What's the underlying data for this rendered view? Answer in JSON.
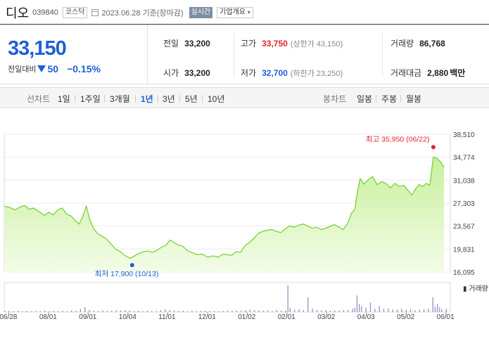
{
  "header": {
    "name": "디오",
    "code": "039840",
    "market": "코스닥",
    "date": "2023.06.28",
    "basis": "기준(장마감)",
    "realtime_label": "실시간",
    "corp_label": "기업개요"
  },
  "summary": {
    "price": "33,150",
    "change_label": "전일대비",
    "change_value": "50",
    "change_pct": "−0.15%",
    "prev_close_label": "전일",
    "prev_close": "33,200",
    "open_label": "시가",
    "open": "33,200",
    "high_label": "고가",
    "high": "33,750",
    "upper_limit": "(상한가 43,150)",
    "low_label": "저가",
    "low": "32,700",
    "lower_limit": "(하한가 23,250)",
    "volume_label": "거래량",
    "volume": "86,768",
    "amount_label": "거래대금",
    "amount": "2,880",
    "amount_unit": "백만"
  },
  "tabs": {
    "line_label": "선차트",
    "line_periods": [
      "1일",
      "1주일",
      "3개월",
      "1년",
      "3년",
      "5년",
      "10년"
    ],
    "active_period": "1년",
    "candle_label": "봉차트",
    "candle_periods": [
      "일봉",
      "주봉",
      "월봉"
    ]
  },
  "colors": {
    "up": "#e4232b",
    "down": "#1e5fd6",
    "area_line": "#6fcf2a",
    "area_fill": "#c8f09c"
  },
  "chart_data": {
    "type": "area",
    "y_ticks": [
      "38,510",
      "34,774",
      "31,038",
      "27,303",
      "23,567",
      "19,831",
      "16,095"
    ],
    "ylim": [
      16095,
      38510
    ],
    "x_ticks": [
      "06/28",
      "08/01",
      "09/01",
      "10/04",
      "11/01",
      "12/01",
      "01/02",
      "02/01",
      "03/02",
      "04/03",
      "05/02",
      "06/01"
    ],
    "high_label": "최고 35,950 (06/22)",
    "low_label": "최저 17,900 (10/13)",
    "high_point": {
      "x": 0.962,
      "y": 35950
    },
    "low_point": {
      "x": 0.282,
      "y": 17900
    },
    "volume_label": "거래량",
    "price_series": [
      [
        0.0,
        26800
      ],
      [
        0.012,
        26600
      ],
      [
        0.024,
        26200
      ],
      [
        0.036,
        26700
      ],
      [
        0.046,
        26900
      ],
      [
        0.056,
        26300
      ],
      [
        0.066,
        26500
      ],
      [
        0.078,
        25900
      ],
      [
        0.09,
        25300
      ],
      [
        0.1,
        25800
      ],
      [
        0.11,
        25400
      ],
      [
        0.12,
        26200
      ],
      [
        0.13,
        26500
      ],
      [
        0.14,
        25500
      ],
      [
        0.15,
        25200
      ],
      [
        0.16,
        24400
      ],
      [
        0.168,
        23900
      ],
      [
        0.176,
        25100
      ],
      [
        0.184,
        26800
      ],
      [
        0.192,
        24600
      ],
      [
        0.2,
        23200
      ],
      [
        0.21,
        22300
      ],
      [
        0.22,
        21900
      ],
      [
        0.23,
        21400
      ],
      [
        0.24,
        20600
      ],
      [
        0.25,
        19800
      ],
      [
        0.26,
        19400
      ],
      [
        0.27,
        18800
      ],
      [
        0.282,
        18300
      ],
      [
        0.292,
        18700
      ],
      [
        0.302,
        19100
      ],
      [
        0.312,
        19400
      ],
      [
        0.322,
        19500
      ],
      [
        0.332,
        19300
      ],
      [
        0.342,
        19600
      ],
      [
        0.352,
        20100
      ],
      [
        0.362,
        20400
      ],
      [
        0.372,
        21300
      ],
      [
        0.38,
        20900
      ],
      [
        0.39,
        20500
      ],
      [
        0.4,
        20300
      ],
      [
        0.41,
        19600
      ],
      [
        0.42,
        19300
      ],
      [
        0.432,
        18900
      ],
      [
        0.444,
        19000
      ],
      [
        0.456,
        18500
      ],
      [
        0.468,
        18700
      ],
      [
        0.48,
        18500
      ],
      [
        0.49,
        19000
      ],
      [
        0.5,
        18900
      ],
      [
        0.51,
        18800
      ],
      [
        0.52,
        19400
      ],
      [
        0.53,
        19300
      ],
      [
        0.54,
        20400
      ],
      [
        0.55,
        20900
      ],
      [
        0.56,
        21600
      ],
      [
        0.57,
        22400
      ],
      [
        0.58,
        22700
      ],
      [
        0.59,
        22900
      ],
      [
        0.6,
        23000
      ],
      [
        0.61,
        22700
      ],
      [
        0.62,
        22500
      ],
      [
        0.63,
        23100
      ],
      [
        0.64,
        23600
      ],
      [
        0.65,
        23400
      ],
      [
        0.66,
        23700
      ],
      [
        0.67,
        23900
      ],
      [
        0.68,
        23600
      ],
      [
        0.69,
        23200
      ],
      [
        0.7,
        23400
      ],
      [
        0.71,
        23000
      ],
      [
        0.72,
        23200
      ],
      [
        0.73,
        23500
      ],
      [
        0.74,
        23800
      ],
      [
        0.75,
        23400
      ],
      [
        0.76,
        23000
      ],
      [
        0.77,
        24000
      ],
      [
        0.778,
        25600
      ],
      [
        0.786,
        26300
      ],
      [
        0.792,
        29200
      ],
      [
        0.798,
        31300
      ],
      [
        0.806,
        30400
      ],
      [
        0.816,
        31100
      ],
      [
        0.826,
        31600
      ],
      [
        0.836,
        30300
      ],
      [
        0.846,
        30800
      ],
      [
        0.856,
        30500
      ],
      [
        0.866,
        29800
      ],
      [
        0.876,
        30500
      ],
      [
        0.886,
        30000
      ],
      [
        0.896,
        30200
      ],
      [
        0.906,
        29300
      ],
      [
        0.914,
        28600
      ],
      [
        0.922,
        29600
      ],
      [
        0.93,
        30300
      ],
      [
        0.938,
        30000
      ],
      [
        0.946,
        30500
      ],
      [
        0.954,
        30200
      ],
      [
        0.962,
        34800
      ],
      [
        0.97,
        34600
      ],
      [
        0.978,
        34000
      ],
      [
        0.986,
        33150
      ]
    ],
    "volume_series": [
      [
        0.0,
        0.05
      ],
      [
        0.01,
        0.04
      ],
      [
        0.02,
        0.03
      ],
      [
        0.03,
        0.05
      ],
      [
        0.04,
        0.03
      ],
      [
        0.05,
        0.04
      ],
      [
        0.06,
        0.03
      ],
      [
        0.07,
        0.04
      ],
      [
        0.08,
        0.03
      ],
      [
        0.09,
        0.05
      ],
      [
        0.1,
        0.03
      ],
      [
        0.11,
        0.04
      ],
      [
        0.12,
        0.03
      ],
      [
        0.13,
        0.05
      ],
      [
        0.14,
        0.03
      ],
      [
        0.15,
        0.06
      ],
      [
        0.16,
        0.04
      ],
      [
        0.17,
        0.12
      ],
      [
        0.18,
        0.18
      ],
      [
        0.19,
        0.08
      ],
      [
        0.2,
        0.05
      ],
      [
        0.21,
        0.04
      ],
      [
        0.22,
        0.06
      ],
      [
        0.23,
        0.04
      ],
      [
        0.24,
        0.05
      ],
      [
        0.25,
        0.06
      ],
      [
        0.26,
        0.05
      ],
      [
        0.27,
        0.07
      ],
      [
        0.28,
        0.06
      ],
      [
        0.29,
        0.04
      ],
      [
        0.3,
        0.05
      ],
      [
        0.31,
        0.04
      ],
      [
        0.32,
        0.05
      ],
      [
        0.33,
        0.04
      ],
      [
        0.34,
        0.03
      ],
      [
        0.35,
        0.07
      ],
      [
        0.36,
        0.1
      ],
      [
        0.37,
        0.08
      ],
      [
        0.38,
        0.05
      ],
      [
        0.39,
        0.04
      ],
      [
        0.4,
        0.05
      ],
      [
        0.41,
        0.03
      ],
      [
        0.42,
        0.04
      ],
      [
        0.43,
        0.03
      ],
      [
        0.44,
        0.04
      ],
      [
        0.45,
        0.05
      ],
      [
        0.46,
        0.03
      ],
      [
        0.47,
        0.04
      ],
      [
        0.48,
        0.03
      ],
      [
        0.49,
        0.04
      ],
      [
        0.5,
        0.05
      ],
      [
        0.51,
        0.04
      ],
      [
        0.52,
        0.06
      ],
      [
        0.53,
        0.05
      ],
      [
        0.54,
        0.07
      ],
      [
        0.55,
        0.09
      ],
      [
        0.56,
        0.07
      ],
      [
        0.57,
        0.06
      ],
      [
        0.58,
        0.05
      ],
      [
        0.59,
        0.06
      ],
      [
        0.6,
        0.04
      ],
      [
        0.61,
        0.08
      ],
      [
        0.62,
        0.05
      ],
      [
        0.63,
        0.06
      ],
      [
        0.635,
        1.0
      ],
      [
        0.64,
        0.15
      ],
      [
        0.65,
        0.08
      ],
      [
        0.66,
        0.1
      ],
      [
        0.67,
        0.07
      ],
      [
        0.68,
        0.55
      ],
      [
        0.69,
        0.12
      ],
      [
        0.7,
        0.07
      ],
      [
        0.71,
        0.06
      ],
      [
        0.72,
        0.08
      ],
      [
        0.73,
        0.05
      ],
      [
        0.74,
        0.06
      ],
      [
        0.75,
        0.05
      ],
      [
        0.76,
        0.07
      ],
      [
        0.77,
        0.08
      ],
      [
        0.78,
        0.12
      ],
      [
        0.785,
        0.16
      ],
      [
        0.79,
        0.62
      ],
      [
        0.795,
        0.3
      ],
      [
        0.8,
        0.22
      ],
      [
        0.81,
        0.15
      ],
      [
        0.82,
        0.35
      ],
      [
        0.83,
        0.12
      ],
      [
        0.84,
        0.22
      ],
      [
        0.85,
        0.12
      ],
      [
        0.86,
        0.14
      ],
      [
        0.87,
        0.1
      ],
      [
        0.88,
        0.09
      ],
      [
        0.89,
        0.12
      ],
      [
        0.9,
        0.08
      ],
      [
        0.91,
        0.1
      ],
      [
        0.92,
        0.07
      ],
      [
        0.93,
        0.09
      ],
      [
        0.94,
        0.1
      ],
      [
        0.95,
        0.12
      ],
      [
        0.96,
        0.55
      ],
      [
        0.965,
        0.2
      ],
      [
        0.97,
        0.3
      ],
      [
        0.975,
        0.18
      ],
      [
        0.98,
        0.1
      ],
      [
        0.99,
        0.12
      ]
    ]
  }
}
